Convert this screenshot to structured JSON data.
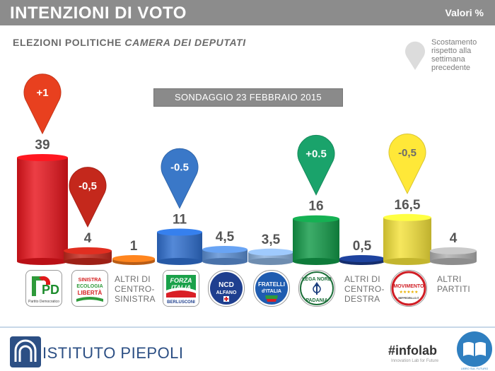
{
  "header": {
    "title": "INTENZIONI DI VOTO",
    "unit": "Valori %"
  },
  "subtitle": {
    "prefix": "ELEZIONI POLITICHE ",
    "italic": "CAMERA DEI DEPUTATI"
  },
  "legend": {
    "text": "Scostamento rispetto alla settimana precedente"
  },
  "banner": "SONDAGGIO 23 FEBBRAIO 2015",
  "chart_data": {
    "type": "bar",
    "title": "INTENZIONI DI VOTO",
    "ylabel": "Valori %",
    "categories": [
      "Partito Democratico",
      "Sinistra Ecologia Libertà",
      "Altri di centro-sinistra",
      "Forza Italia",
      "NCD Alfano",
      "Fratelli d'Italia",
      "Lega Nord Padania",
      "Altri di centro-destra",
      "Movimento 5 Stelle",
      "Altri partiti"
    ],
    "values": [
      39,
      4,
      1,
      11,
      4.5,
      3.5,
      16,
      0.5,
      16.5,
      4
    ],
    "value_labels": [
      "39",
      "4",
      "1",
      "11",
      "4,5",
      "3,5",
      "16",
      "0,5",
      "16,5",
      "4"
    ],
    "changes": [
      {
        "category": "Partito Democratico",
        "label": "+1",
        "color": "#e8401f"
      },
      {
        "category": "Sinistra Ecologia Libertà",
        "label": "-0,5",
        "color": "#c4281c"
      },
      {
        "category": "Forza Italia",
        "label": "-0.5",
        "color": "#3a78c8"
      },
      {
        "category": "Lega Nord Padania",
        "label": "+0.5",
        "color": "#1aa36b"
      },
      {
        "category": "Movimento 5 Stelle",
        "label": "-0,5",
        "color": "#ffe838"
      }
    ],
    "colors": [
      "#e8141c",
      "#c4281c",
      "#e8741a",
      "#2f6fcf",
      "#5b8fd4",
      "#8ab0dc",
      "#129a48",
      "#1a3a8a",
      "#f4e23a",
      "#b0b0b0"
    ]
  },
  "logos": {
    "pd": "PD",
    "pd_sub": "Partito Democratico",
    "sel_1": "SINISTRA",
    "sel_2": "ECOLOGIA",
    "sel_3": "LIBERTÀ",
    "fi_1": "FORZA",
    "fi_2": "ITALIA",
    "fi_3": "BERLUSCONI",
    "ncd_1": "NCD",
    "ncd_2": "ALFANO",
    "fdi_1": "FRATELLI",
    "fdi_2": "d'ITALIA",
    "lega_1": "LEGA NORD",
    "lega_2": "PADANIA",
    "m5s_1": "MOVIMENTO",
    "m5s_2": "★★★★★",
    "m5s_3": "BEPPEGRILLO.IT"
  },
  "cat_labels": {
    "altri_cs": "ALTRI DI CENTRO-SINISTRA",
    "altri_cd": "ALTRI DI CENTRO-DESTRA",
    "altri_partiti": "ALTRI PARTITI"
  },
  "footer": {
    "brand": "ISTITUTO PIEPOLI",
    "infolab": "#infolab",
    "infolab_sub": "Innovation Lab for Future",
    "book_label": "LIBRO SUL FUTURO"
  }
}
